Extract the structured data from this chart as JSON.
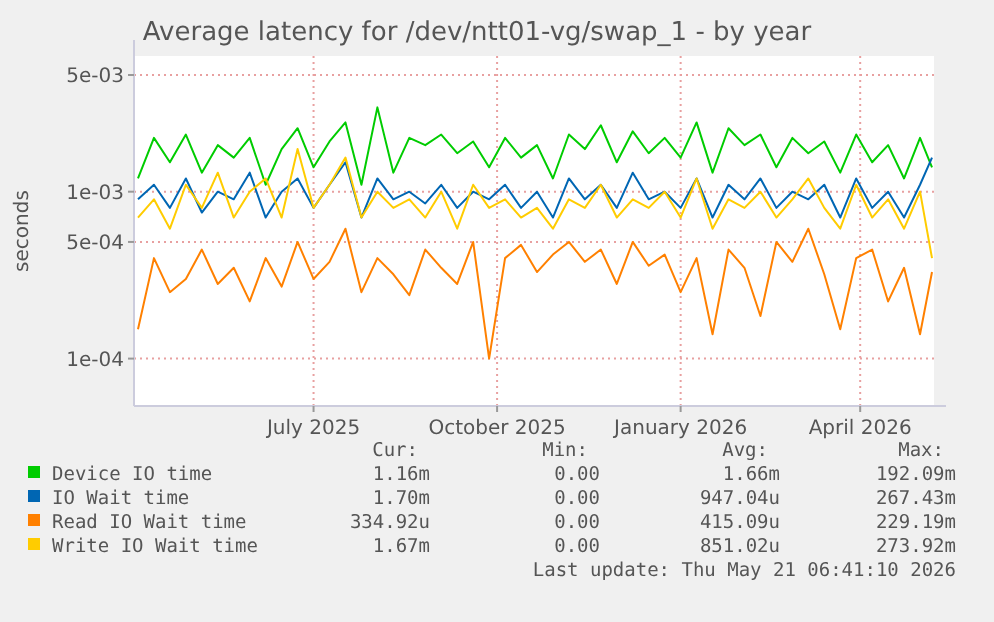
{
  "chart_data": {
    "type": "line",
    "title": "Average latency for /dev/ntt01-vg/swap_1 - by year",
    "ylabel": "seconds",
    "log": "y",
    "grid": true,
    "legend": "bottom",
    "marker": "none",
    "line_style": "solid",
    "xlim": [
      "2025-04-02",
      "2026-05-08"
    ],
    "xticks": [
      {
        "value": "2025-07-01",
        "label": "July 2025"
      },
      {
        "value": "2025-10-01",
        "label": "October 2025"
      },
      {
        "value": "2026-01-01",
        "label": "January 2026"
      },
      {
        "value": "2026-04-01",
        "label": "April 2026"
      }
    ],
    "ylim": [
      5.2e-05,
      0.0065
    ],
    "yticks": [
      {
        "value": 0.0001,
        "label": "1e-04"
      },
      {
        "value": 0.0005,
        "label": "5e-04"
      },
      {
        "value": 0.001,
        "label": "1e-03"
      },
      {
        "value": 0.005,
        "label": "5e-03"
      }
    ],
    "x": [
      "2025-04-04",
      "2025-04-12",
      "2025-04-20",
      "2025-04-28",
      "2025-05-06",
      "2025-05-14",
      "2025-05-22",
      "2025-05-30",
      "2025-06-07",
      "2025-06-15",
      "2025-06-23",
      "2025-07-01",
      "2025-07-09",
      "2025-07-17",
      "2025-07-25",
      "2025-08-02",
      "2025-08-10",
      "2025-08-18",
      "2025-08-26",
      "2025-09-03",
      "2025-09-11",
      "2025-09-19",
      "2025-09-27",
      "2025-10-05",
      "2025-10-13",
      "2025-10-21",
      "2025-10-29",
      "2025-11-06",
      "2025-11-14",
      "2025-11-22",
      "2025-11-30",
      "2025-12-08",
      "2025-12-16",
      "2025-12-24",
      "2026-01-01",
      "2026-01-09",
      "2026-01-17",
      "2026-01-25",
      "2026-02-02",
      "2026-02-10",
      "2026-02-18",
      "2026-02-26",
      "2026-03-06",
      "2026-03-14",
      "2026-03-22",
      "2026-03-30",
      "2026-04-07",
      "2026-04-15",
      "2026-04-23",
      "2026-05-01",
      "2026-05-07"
    ],
    "series": [
      {
        "name": "Device IO time",
        "color": "#00cc00",
        "values": [
          0.0012,
          0.0021,
          0.0015,
          0.0022,
          0.0013,
          0.0019,
          0.0016,
          0.0021,
          0.0011,
          0.0018,
          0.0024,
          0.0014,
          0.002,
          0.0026,
          0.0011,
          0.0032,
          0.0013,
          0.0021,
          0.0019,
          0.0022,
          0.0017,
          0.002,
          0.0014,
          0.0021,
          0.0016,
          0.0019,
          0.0012,
          0.0022,
          0.0018,
          0.0025,
          0.0015,
          0.0023,
          0.0017,
          0.0021,
          0.0016,
          0.0026,
          0.0013,
          0.0024,
          0.0019,
          0.0022,
          0.0014,
          0.0021,
          0.0017,
          0.002,
          0.0013,
          0.0022,
          0.0015,
          0.0019,
          0.0012,
          0.0021,
          0.0014
        ]
      },
      {
        "name": "IO Wait time",
        "color": "#0066b3",
        "values": [
          0.0009,
          0.0011,
          0.0008,
          0.0012,
          0.00075,
          0.001,
          0.0009,
          0.0013,
          0.0007,
          0.001,
          0.0012,
          0.0008,
          0.0011,
          0.0015,
          0.0007,
          0.0012,
          0.0009,
          0.001,
          0.00085,
          0.0011,
          0.0008,
          0.001,
          0.0009,
          0.0011,
          0.0008,
          0.001,
          0.0007,
          0.0012,
          0.0009,
          0.0011,
          0.0008,
          0.0013,
          0.0009,
          0.001,
          0.0008,
          0.0012,
          0.0007,
          0.0011,
          0.0009,
          0.0012,
          0.0008,
          0.001,
          0.0009,
          0.0011,
          0.0007,
          0.0012,
          0.0008,
          0.001,
          0.0007,
          0.0011,
          0.0016
        ]
      },
      {
        "name": "Read IO Wait time",
        "color": "#ff8000",
        "values": [
          0.00015,
          0.0004,
          0.00025,
          0.0003,
          0.00045,
          0.00028,
          0.00035,
          0.00022,
          0.0004,
          0.00027,
          0.0005,
          0.0003,
          0.00038,
          0.0006,
          0.00025,
          0.0004,
          0.00032,
          0.00024,
          0.00045,
          0.00035,
          0.00028,
          0.0005,
          0.0001,
          0.0004,
          0.00048,
          0.00033,
          0.00042,
          0.0005,
          0.00038,
          0.00045,
          0.00028,
          0.0005,
          0.00036,
          0.00042,
          0.00025,
          0.0004,
          0.00014,
          0.00045,
          0.00035,
          0.00018,
          0.0005,
          0.00038,
          0.0006,
          0.00032,
          0.00015,
          0.0004,
          0.00045,
          0.00022,
          0.00035,
          0.00014,
          0.00033
        ]
      },
      {
        "name": "Write IO Wait time",
        "color": "#ffcc00",
        "values": [
          0.0007,
          0.0009,
          0.0006,
          0.0011,
          0.0008,
          0.0013,
          0.0007,
          0.001,
          0.0012,
          0.0007,
          0.0018,
          0.0008,
          0.0011,
          0.0016,
          0.0007,
          0.001,
          0.0008,
          0.0009,
          0.0007,
          0.001,
          0.0006,
          0.0011,
          0.0008,
          0.0009,
          0.0007,
          0.0008,
          0.0006,
          0.0009,
          0.0008,
          0.0011,
          0.0007,
          0.0009,
          0.0008,
          0.001,
          0.0007,
          0.0012,
          0.0006,
          0.0009,
          0.0008,
          0.001,
          0.0007,
          0.0009,
          0.0012,
          0.0008,
          0.0006,
          0.0011,
          0.0007,
          0.0009,
          0.0006,
          0.001,
          0.0004
        ]
      }
    ],
    "annotations": [
      "Cur:",
      "Min:",
      "Avg:",
      "Max:",
      "1.16m",
      "0.00",
      "1.66m",
      "192.09m",
      "1.70m",
      "0.00",
      "947.04u",
      "267.43m",
      "334.92u",
      "0.00",
      "415.09u",
      "229.19m",
      "1.67m",
      "0.00",
      "851.02u",
      "273.92m",
      "Last update: Thu May 21 06:41:10 2026"
    ]
  }
}
